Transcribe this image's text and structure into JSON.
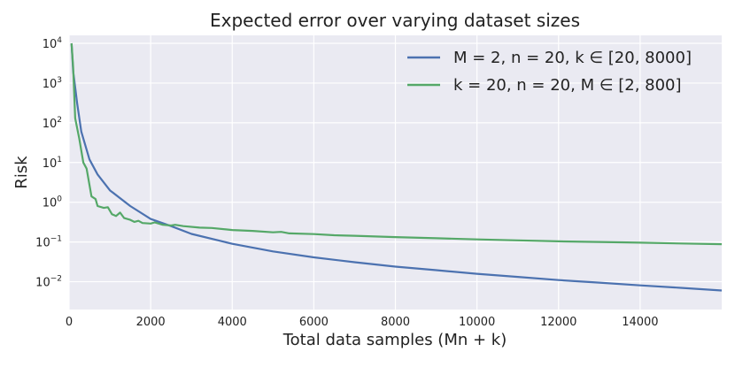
{
  "chart_data": {
    "type": "line",
    "title": "Expected error over varying dataset sizes",
    "xlabel": "Total data samples (Mn + k)",
    "ylabel": "Risk",
    "xlim": [
      0,
      16000
    ],
    "ylim_log10": [
      -2.7,
      4.2
    ],
    "yscale": "log",
    "grid": true,
    "legend_position": "top-right",
    "x_ticks": [
      "0",
      "2000",
      "4000",
      "6000",
      "8000",
      "10000",
      "12000",
      "14000"
    ],
    "x_tick_values": [
      0,
      2000,
      4000,
      6000,
      8000,
      10000,
      12000,
      14000
    ],
    "y_ticks": [
      {
        "base": "10",
        "exp": "4",
        "value": 4
      },
      {
        "base": "10",
        "exp": "3",
        "value": 3
      },
      {
        "base": "10",
        "exp": "2",
        "value": 2
      },
      {
        "base": "10",
        "exp": "1",
        "value": 1
      },
      {
        "base": "10",
        "exp": "0",
        "value": 0
      },
      {
        "base": "10",
        "exp": "−1",
        "value": -1
      },
      {
        "base": "10",
        "exp": "−2",
        "value": -2
      }
    ],
    "series": [
      {
        "name": "M = 2, n = 20, k ∈ [20, 8000]",
        "color": "#4c72b0",
        "points": [
          [
            60,
            10000
          ],
          [
            100,
            2000
          ],
          [
            200,
            300
          ],
          [
            300,
            60
          ],
          [
            500,
            12
          ],
          [
            700,
            5
          ],
          [
            1000,
            2
          ],
          [
            1500,
            0.8
          ],
          [
            2000,
            0.38
          ],
          [
            2500,
            0.25
          ],
          [
            3000,
            0.16
          ],
          [
            4000,
            0.09
          ],
          [
            5000,
            0.058
          ],
          [
            6000,
            0.041
          ],
          [
            7000,
            0.031
          ],
          [
            8000,
            0.024
          ],
          [
            9000,
            0.0195
          ],
          [
            10000,
            0.0158
          ],
          [
            11000,
            0.0132
          ],
          [
            12000,
            0.011
          ],
          [
            13000,
            0.0095
          ],
          [
            14000,
            0.0081
          ],
          [
            15000,
            0.007
          ],
          [
            16000,
            0.006
          ]
        ]
      },
      {
        "name": "k = 20, n = 20, M ∈ [2, 800]",
        "color": "#55a868",
        "points": [
          [
            60,
            10000
          ],
          [
            100,
            2500
          ],
          [
            150,
            130
          ],
          [
            250,
            40
          ],
          [
            350,
            10
          ],
          [
            430,
            7
          ],
          [
            550,
            1.4
          ],
          [
            650,
            1.2
          ],
          [
            700,
            0.8
          ],
          [
            850,
            0.72
          ],
          [
            950,
            0.75
          ],
          [
            1050,
            0.5
          ],
          [
            1150,
            0.45
          ],
          [
            1250,
            0.55
          ],
          [
            1350,
            0.4
          ],
          [
            1500,
            0.36
          ],
          [
            1600,
            0.32
          ],
          [
            1700,
            0.34
          ],
          [
            1800,
            0.3
          ],
          [
            2000,
            0.29
          ],
          [
            2100,
            0.31
          ],
          [
            2300,
            0.27
          ],
          [
            2500,
            0.26
          ],
          [
            2600,
            0.27
          ],
          [
            2800,
            0.25
          ],
          [
            3200,
            0.23
          ],
          [
            3500,
            0.225
          ],
          [
            4000,
            0.2
          ],
          [
            4500,
            0.19
          ],
          [
            5000,
            0.175
          ],
          [
            5200,
            0.18
          ],
          [
            5400,
            0.165
          ],
          [
            6000,
            0.158
          ],
          [
            6500,
            0.148
          ],
          [
            7000,
            0.143
          ],
          [
            8000,
            0.133
          ],
          [
            9000,
            0.124
          ],
          [
            10000,
            0.116
          ],
          [
            11000,
            0.11
          ],
          [
            12000,
            0.104
          ],
          [
            13000,
            0.1
          ],
          [
            14000,
            0.096
          ],
          [
            15000,
            0.092
          ],
          [
            16000,
            0.088
          ]
        ]
      }
    ]
  }
}
